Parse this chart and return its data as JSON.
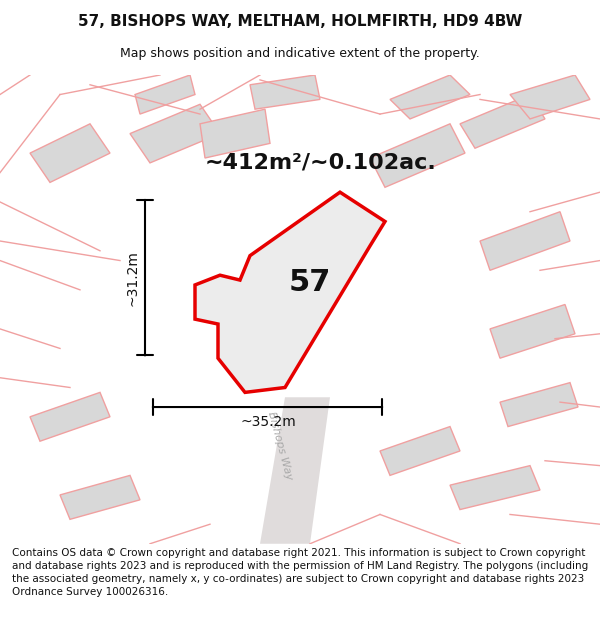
{
  "title": "57, BISHOPS WAY, MELTHAM, HOLMFIRTH, HD9 4BW",
  "subtitle": "Map shows position and indicative extent of the property.",
  "area_label": "~412m²/~0.102ac.",
  "plot_number": "57",
  "dim_width": "~35.2m",
  "dim_height": "~31.2m",
  "road_label": "Bishops Way",
  "footer": "Contains OS data © Crown copyright and database right 2021. This information is subject to Crown copyright and database rights 2023 and is reproduced with the permission of HM Land Registry. The polygons (including the associated geometry, namely x, y co-ordinates) are subject to Crown copyright and database rights 2023 Ordnance Survey 100026316.",
  "bg_color": "#f5f0f0",
  "map_bg": "#f5f0f0",
  "plot_fill": "#e8e8e8",
  "plot_edge": "#e60000",
  "road_color": "#e8e8e8",
  "building_fill": "#d0d0d0",
  "boundary_color": "#f0a0a0",
  "title_fontsize": 11,
  "subtitle_fontsize": 9,
  "footer_fontsize": 7.5
}
